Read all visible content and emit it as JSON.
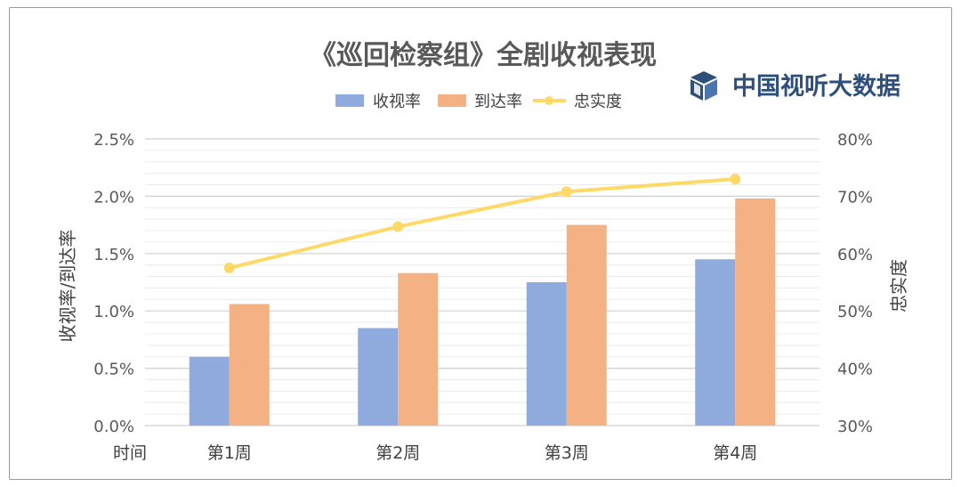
{
  "chart_data": {
    "type": "bar",
    "title": "《巡回检察组》全剧收视表现",
    "categories": [
      "第1周",
      "第2周",
      "第3周",
      "第4周"
    ],
    "xlabel": "时间",
    "ylabel": "收视率/到达率",
    "y2label": "忠实度",
    "ylim": [
      0.0,
      2.5
    ],
    "y2lim": [
      30,
      80
    ],
    "yticks": [
      "0.0%",
      "0.5%",
      "1.0%",
      "1.5%",
      "2.0%",
      "2.5%"
    ],
    "y2ticks": [
      "30%",
      "40%",
      "50%",
      "60%",
      "70%",
      "80%"
    ],
    "grid": true,
    "legend_position": "top",
    "series": [
      {
        "name": "收视率",
        "kind": "bar",
        "axis": "left",
        "color": "#8faadc",
        "values": [
          0.6,
          0.85,
          1.25,
          1.45
        ]
      },
      {
        "name": "到达率",
        "kind": "bar",
        "axis": "left",
        "color": "#f4b183",
        "values": [
          1.06,
          1.33,
          1.75,
          1.98
        ]
      },
      {
        "name": "忠实度",
        "kind": "line",
        "axis": "right",
        "color": "#ffd966",
        "values": [
          57.5,
          64.7,
          70.8,
          73.0
        ]
      }
    ]
  },
  "brand": {
    "name": "中国视听大数据",
    "icon": "cube-logo-icon",
    "color": "#2e4f7a"
  }
}
